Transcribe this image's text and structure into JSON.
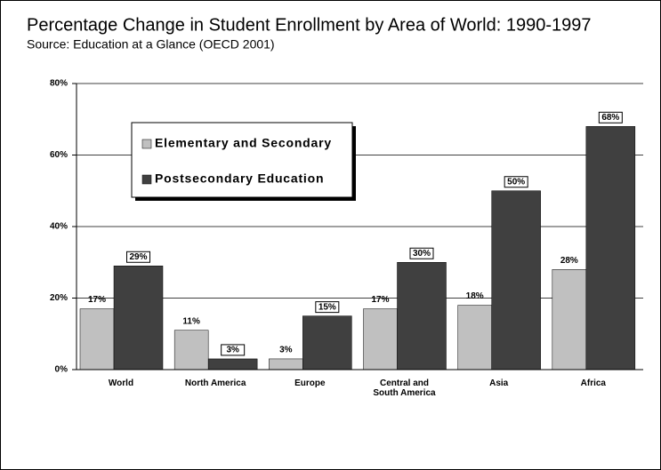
{
  "chart_data": {
    "type": "bar",
    "title": "Percentage Change in Student Enrollment by Area of World: 1990-1997",
    "subtitle": "Source: Education at a Glance (OECD 2001)",
    "categories": [
      "World",
      "North America",
      "Europe",
      "Central and South America",
      "Asia",
      "Africa"
    ],
    "series": [
      {
        "name": "Elementary and Secondary",
        "color": "#c0c0c0",
        "values": [
          17,
          11,
          3,
          17,
          18,
          28
        ],
        "value_labels": [
          "17%",
          "11%",
          "3%",
          "17%",
          "18%",
          "28%"
        ]
      },
      {
        "name": "Postsecondary Education",
        "color": "#404040",
        "values": [
          29,
          3,
          15,
          30,
          50,
          68
        ],
        "value_labels": [
          "29%",
          "3%",
          "15%",
          "30%",
          "50%",
          "68%"
        ]
      }
    ],
    "ylim": [
      0,
      80
    ],
    "yticks": [
      {
        "value": 0,
        "label": "0%"
      },
      {
        "value": 20,
        "label": "20%"
      },
      {
        "value": 40,
        "label": "40%"
      },
      {
        "value": 60,
        "label": "60%"
      },
      {
        "value": 80,
        "label": "80%"
      }
    ],
    "grid": true,
    "legend": "upper left"
  }
}
